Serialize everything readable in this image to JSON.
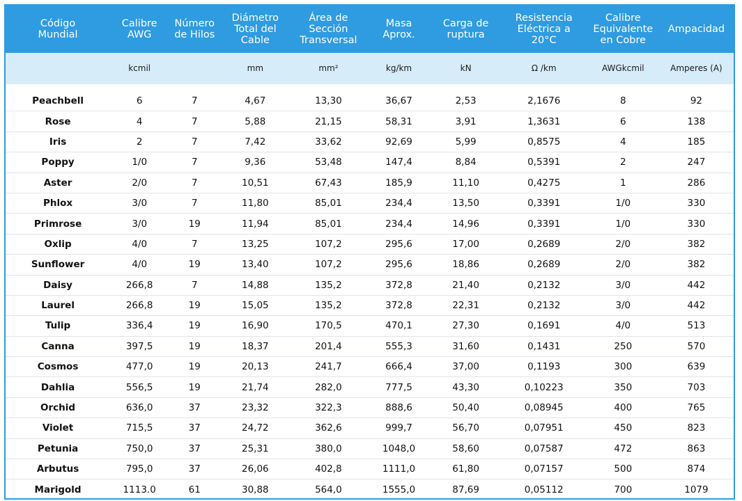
{
  "headers": [
    [
      "Código",
      "Mundial"
    ],
    [
      "Calibre",
      "AWG"
    ],
    [
      "Número",
      "de Hilos"
    ],
    [
      "Diámetro",
      "Total del",
      "Cable"
    ],
    [
      "Área de",
      "Sección",
      "Transversal"
    ],
    [
      "Masa",
      "Aprox."
    ],
    [
      "Carga de",
      "ruptura"
    ],
    [
      "Resistencia",
      "Eléctrica a",
      "20°C"
    ],
    [
      "Calibre",
      "Equivalente",
      "en Cobre"
    ],
    [
      "Ampacidad"
    ]
  ],
  "units": [
    "",
    "kcmil",
    "",
    "mm",
    "mm²",
    "kg/km",
    "kN",
    "Ω /km",
    "AWGkcmil",
    "Amperes (A)"
  ],
  "rows": [
    [
      "Peachbell",
      "6",
      "7",
      "4,67",
      "13,30",
      "36,67",
      "2,53",
      "2,1676",
      "8",
      "92"
    ],
    [
      "Rose",
      "4",
      "7",
      "5,88",
      "21,15",
      "58,31",
      "3,91",
      "1,3631",
      "6",
      "138"
    ],
    [
      "Iris",
      "2",
      "7",
      "7,42",
      "33,62",
      "92,69",
      "5,99",
      "0,8575",
      "4",
      "185"
    ],
    [
      "Poppy",
      "1/0",
      "7",
      "9,36",
      "53,48",
      "147,4",
      "8,84",
      "0,5391",
      "2",
      "247"
    ],
    [
      "Aster",
      "2/0",
      "7",
      "10,51",
      "67,43",
      "185,9",
      "11,10",
      "0,4275",
      "1",
      "286"
    ],
    [
      "Phlox",
      "3/0",
      "7",
      "11,80",
      "85,01",
      "234,4",
      "13,50",
      "0,3391",
      "1/0",
      "330"
    ],
    [
      "Primrose",
      "3/0",
      "19",
      "11,94",
      "85,01",
      "234,4",
      "14,96",
      "0,3391",
      "1/0",
      "330"
    ],
    [
      "Oxlip",
      "4/0",
      "7",
      "13,25",
      "107,2",
      "295,6",
      "17,00",
      "0,2689",
      "2/0",
      "382"
    ],
    [
      "Sunflower",
      "4/0",
      "19",
      "13,40",
      "107,2",
      "295,6",
      "18,86",
      "0,2689",
      "2/0",
      "382"
    ],
    [
      "Daisy",
      "266,8",
      "7",
      "14,88",
      "135,2",
      "372,8",
      "21,40",
      "0,2132",
      "3/0",
      "442"
    ],
    [
      "Laurel",
      "266,8",
      "19",
      "15,05",
      "135,2",
      "372,8",
      "22,31",
      "0,2132",
      "3/0",
      "442"
    ],
    [
      "Tulip",
      "336,4",
      "19",
      "16,90",
      "170,5",
      "470,1",
      "27,30",
      "0,1691",
      "4/0",
      "513"
    ],
    [
      "Canna",
      "397,5",
      "19",
      "18,37",
      "201,4",
      "555,3",
      "31,60",
      "0,1431",
      "250",
      "570"
    ],
    [
      "Cosmos",
      "477,0",
      "19",
      "20,13",
      "241,7",
      "666,4",
      "37,00",
      "0,1193",
      "300",
      "639"
    ],
    [
      "Dahlia",
      "556,5",
      "19",
      "21,74",
      "282,0",
      "777,5",
      "43,30",
      "0,10223",
      "350",
      "703"
    ],
    [
      "Orchid",
      "636,0",
      "37",
      "23,32",
      "322,3",
      "888,6",
      "50,40",
      "0,08945",
      "400",
      "765"
    ],
    [
      "Violet",
      "715,5",
      "37",
      "24,72",
      "362,6",
      "999,7",
      "56,70",
      "0,07951",
      "450",
      "823"
    ],
    [
      "Petunia",
      "750,0",
      "37",
      "25,31",
      "380,0",
      "1048,0",
      "58,60",
      "0,07587",
      "472",
      "863"
    ],
    [
      "Arbutus",
      "795,0",
      "37",
      "26,06",
      "402,8",
      "1111,0",
      "61,80",
      "0,07157",
      "500",
      "874"
    ],
    [
      "Marigold",
      "1113.0",
      "61",
      "30,88",
      "564,0",
      "1555,0",
      "87,69",
      "0,05112",
      "700",
      "1079"
    ]
  ],
  "colors": {
    "header_bg": "#2f9be0",
    "units_bg": "#d7ecf9",
    "border": "#2f9be0"
  }
}
